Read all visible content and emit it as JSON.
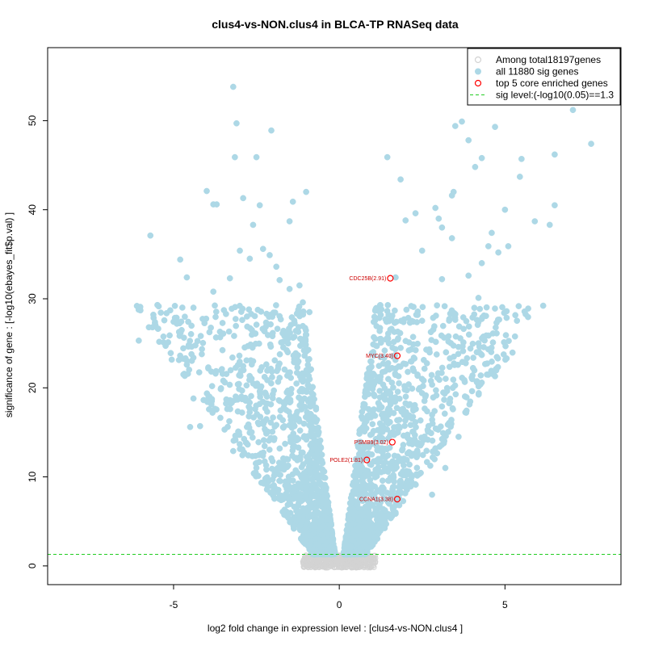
{
  "chart_data": {
    "type": "scatter",
    "title": "clus4-vs-NON.clus4 in BLCA-TP RNASeq data",
    "xlabel": "log2 fold change in expression level : [clus4-vs-NON.clus4 ]",
    "ylabel": "significance of gene : [-log10(ebayes_fit$p.val) ]",
    "xlim": [
      -8.8,
      8.5
    ],
    "ylim": [
      -2.1,
      58.2
    ],
    "x_ticks": [
      -5,
      0,
      5
    ],
    "y_ticks": [
      0,
      10,
      20,
      30,
      40,
      50
    ],
    "x_tick_labels": [
      "-5",
      "0",
      "5"
    ],
    "y_tick_labels": [
      "0",
      "10",
      "20",
      "30",
      "40",
      "50"
    ],
    "grid": false,
    "legend_position": "top-right",
    "legend": [
      {
        "label": "Among total18197genes",
        "marker": "open-circle",
        "color": "#d3d3d3"
      },
      {
        "label": "all 11880 sig genes",
        "marker": "filled-circle",
        "color": "#add8e6"
      },
      {
        "label": "top 5 core enriched genes",
        "marker": "open-circle",
        "color": "#ff0000"
      },
      {
        "label": "sig level:(-log10(0.05)==1.3",
        "marker": "dashed-line",
        "color": "#00cc00"
      }
    ],
    "sig_level": 1.3,
    "colors": {
      "nonsig": "#d3d3d3",
      "sig": "#add8e6",
      "core": "#ff0000",
      "core_label": "#cc0000",
      "threshold": "#22cc22"
    },
    "sig_points": [
      [
        -3.2,
        53.8
      ],
      [
        -3.1,
        49.7
      ],
      [
        -2.05,
        48.9
      ],
      [
        -3.15,
        45.9
      ],
      [
        -2.5,
        45.9
      ],
      [
        -4.0,
        42.1
      ],
      [
        -3.8,
        40.6
      ],
      [
        -3.7,
        40.6
      ],
      [
        -2.9,
        41.3
      ],
      [
        -2.4,
        40.5
      ],
      [
        -1.4,
        40.9
      ],
      [
        -1.0,
        42.0
      ],
      [
        -5.7,
        37.1
      ],
      [
        -4.8,
        34.4
      ],
      [
        -1.5,
        38.7
      ],
      [
        -2.6,
        38.3
      ],
      [
        -6.0,
        28.7
      ],
      [
        -6.05,
        25.3
      ],
      [
        -5.1,
        28.7
      ],
      [
        -5.3,
        25.1
      ],
      [
        -4.9,
        27.2
      ],
      [
        -4.6,
        32.4
      ],
      [
        -4.6,
        22.6
      ],
      [
        -4.4,
        29.0
      ],
      [
        -4.5,
        15.6
      ],
      [
        -4.2,
        15.7
      ],
      [
        -4.4,
        18.8
      ],
      [
        -3.8,
        30.8
      ],
      [
        -3.6,
        26.3
      ],
      [
        -3.3,
        32.3
      ],
      [
        -3.5,
        20.8
      ],
      [
        -3.2,
        12.9
      ],
      [
        -3.0,
        35.4
      ],
      [
        -2.7,
        34.5
      ],
      [
        -2.3,
        35.6
      ],
      [
        -2.1,
        34.9
      ],
      [
        -1.9,
        33.6
      ],
      [
        -1.8,
        32.1
      ],
      [
        -1.5,
        31.1
      ],
      [
        -1.2,
        31.5
      ],
      [
        -1.1,
        29.6
      ],
      [
        -0.9,
        28.5
      ],
      [
        1.45,
        45.9
      ],
      [
        1.85,
        43.4
      ],
      [
        2.0,
        38.8
      ],
      [
        2.3,
        39.6
      ],
      [
        2.5,
        35.4
      ],
      [
        2.9,
        40.2
      ],
      [
        3.0,
        39.0
      ],
      [
        3.1,
        38.0
      ],
      [
        3.4,
        41.6
      ],
      [
        3.45,
        42.0
      ],
      [
        3.5,
        49.4
      ],
      [
        3.4,
        36.8
      ],
      [
        3.7,
        49.9
      ],
      [
        3.9,
        47.8
      ],
      [
        4.1,
        44.8
      ],
      [
        4.3,
        45.8
      ],
      [
        4.7,
        49.3
      ],
      [
        4.6,
        37.4
      ],
      [
        4.8,
        35.2
      ],
      [
        4.5,
        35.9
      ],
      [
        5.0,
        40.0
      ],
      [
        5.1,
        35.9
      ],
      [
        5.5,
        45.7
      ],
      [
        5.45,
        43.7
      ],
      [
        6.5,
        46.2
      ],
      [
        6.5,
        40.5
      ],
      [
        6.35,
        38.3
      ],
      [
        5.9,
        38.7
      ],
      [
        7.05,
        51.2
      ],
      [
        7.6,
        47.4
      ],
      [
        5.7,
        28.9
      ],
      [
        5.05,
        28.6
      ],
      [
        5.05,
        23.3
      ],
      [
        4.7,
        21.3
      ],
      [
        4.2,
        25.0
      ],
      [
        4.15,
        24.0
      ],
      [
        3.4,
        28.3
      ],
      [
        3.6,
        14.5
      ],
      [
        3.1,
        32.2
      ],
      [
        3.9,
        32.6
      ],
      [
        4.2,
        30.1
      ],
      [
        4.3,
        34.0
      ],
      [
        1.7,
        32.4
      ],
      [
        1.6,
        28.1
      ],
      [
        2.1,
        24.2
      ],
      [
        1.3,
        14.0
      ],
      [
        2.5,
        19.4
      ],
      [
        2.9,
        13.2
      ],
      [
        3.2,
        11.0
      ],
      [
        2.8,
        8.0
      ]
    ],
    "core_genes": [
      {
        "name": "CDC25B(2.91)",
        "x": 1.54,
        "y": 32.3
      },
      {
        "name": "MYC(3.40)",
        "x": 1.75,
        "y": 23.6
      },
      {
        "name": "PSMB9(3.02)",
        "x": 1.6,
        "y": 13.9
      },
      {
        "name": "POLE2(1.81)",
        "x": 0.83,
        "y": 11.9
      },
      {
        "name": "CCNA1(3.38)",
        "x": 1.75,
        "y": 7.5
      }
    ]
  }
}
